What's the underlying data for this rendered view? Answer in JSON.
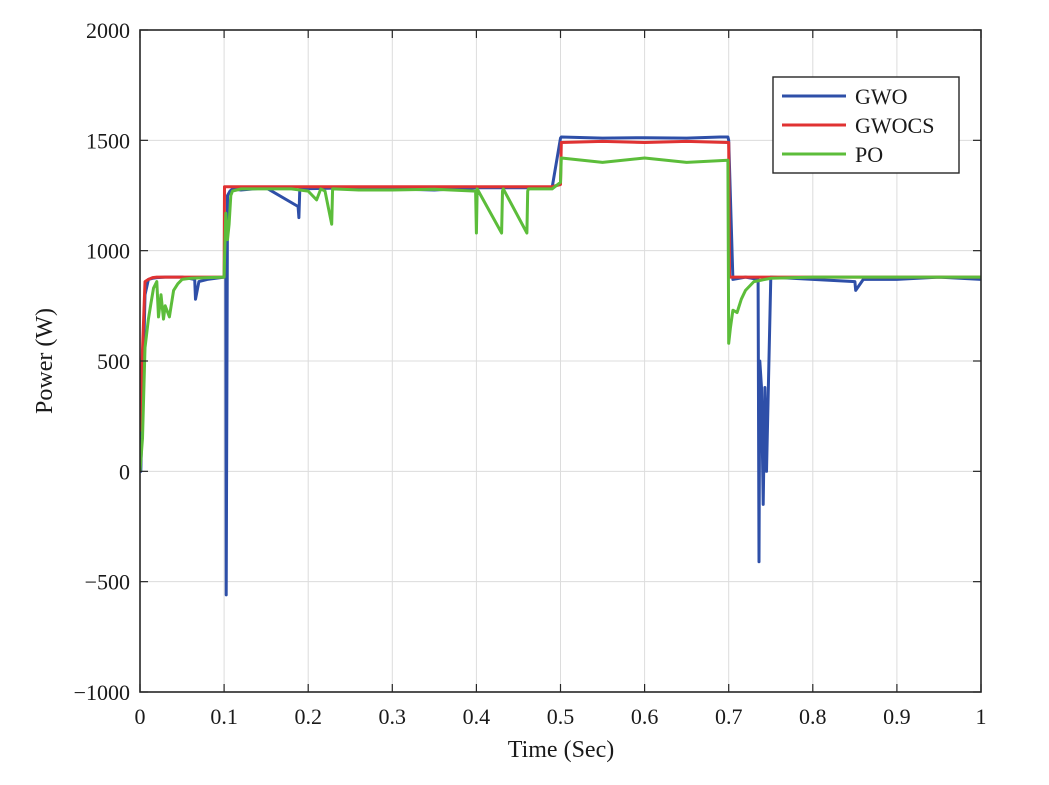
{
  "chart_data": {
    "type": "line",
    "title": "",
    "xlabel": "Time (Sec)",
    "ylabel": "Power (W)",
    "xlim": [
      0,
      1
    ],
    "ylim": [
      -1000,
      2000
    ],
    "xticks": [
      0,
      0.1,
      0.2,
      0.3,
      0.4,
      0.5,
      0.6,
      0.7,
      0.8,
      0.9,
      1
    ],
    "xtick_labels": [
      "0",
      "0.1",
      "0.2",
      "0.3",
      "0.4",
      "0.5",
      "0.6",
      "0.7",
      "0.8",
      "0.9",
      "1"
    ],
    "yticks": [
      -1000,
      -500,
      0,
      500,
      1000,
      1500,
      2000
    ],
    "ytick_labels": [
      "−1000",
      "−500",
      "0",
      "500",
      "1000",
      "1500",
      "2000"
    ],
    "grid": true,
    "legend_position": "top-right",
    "series": [
      {
        "name": "GWO",
        "color": "#2e4fa8",
        "x": [
          0,
          0.001,
          0.003,
          0.006,
          0.01,
          0.015,
          0.02,
          0.03,
          0.05,
          0.065,
          0.066,
          0.07,
          0.08,
          0.1,
          0.101,
          0.102,
          0.1025,
          0.104,
          0.107,
          0.11,
          0.12,
          0.15,
          0.188,
          0.189,
          0.19,
          0.25,
          0.3,
          0.35,
          0.4,
          0.45,
          0.49,
          0.5,
          0.501,
          0.55,
          0.6,
          0.65,
          0.69,
          0.699,
          0.7,
          0.705,
          0.72,
          0.735,
          0.736,
          0.737,
          0.739,
          0.741,
          0.743,
          0.745,
          0.75,
          0.8,
          0.85,
          0.851,
          0.86,
          0.9,
          0.95,
          1
        ],
        "y": [
          80,
          0,
          300,
          800,
          870,
          875,
          878,
          880,
          880,
          870,
          780,
          860,
          870,
          880,
          900,
          1000,
          -560,
          1250,
          1270,
          1280,
          1275,
          1285,
          1200,
          1150,
          1280,
          1285,
          1280,
          1275,
          1285,
          1285,
          1285,
          1510,
          1515,
          1510,
          1512,
          1510,
          1515,
          1515,
          1500,
          870,
          880,
          870,
          -410,
          500,
          380,
          -150,
          380,
          0,
          880,
          870,
          860,
          820,
          870,
          870,
          880,
          870
        ]
      },
      {
        "name": "GWOCS",
        "color": "#e03232",
        "x": [
          0,
          0.001,
          0.003,
          0.006,
          0.01,
          0.015,
          0.02,
          0.03,
          0.05,
          0.1,
          0.1005,
          0.11,
          0.15,
          0.2,
          0.3,
          0.4,
          0.49,
          0.5,
          0.501,
          0.55,
          0.6,
          0.65,
          0.699,
          0.7,
          0.701,
          0.75,
          0.8,
          0.9,
          1
        ],
        "y": [
          180,
          300,
          550,
          860,
          870,
          878,
          880,
          880,
          880,
          880,
          1290,
          1290,
          1290,
          1290,
          1290,
          1290,
          1290,
          1300,
          1490,
          1495,
          1490,
          1495,
          1490,
          1490,
          880,
          880,
          880,
          880,
          880
        ]
      },
      {
        "name": "PO",
        "color": "#5cbd3a",
        "x": [
          0,
          0.003,
          0.006,
          0.01,
          0.013,
          0.016,
          0.02,
          0.022,
          0.025,
          0.028,
          0.03,
          0.035,
          0.04,
          0.045,
          0.05,
          0.06,
          0.08,
          0.1,
          0.1005,
          0.102,
          0.104,
          0.106,
          0.108,
          0.11,
          0.115,
          0.12,
          0.15,
          0.18,
          0.2,
          0.21,
          0.215,
          0.22,
          0.228,
          0.229,
          0.23,
          0.26,
          0.3,
          0.35,
          0.399,
          0.4,
          0.401,
          0.43,
          0.431,
          0.432,
          0.46,
          0.461,
          0.462,
          0.49,
          0.5,
          0.501,
          0.55,
          0.6,
          0.65,
          0.699,
          0.7,
          0.702,
          0.705,
          0.71,
          0.715,
          0.72,
          0.73,
          0.75,
          0.8,
          0.9,
          1
        ],
        "y": [
          0,
          150,
          560,
          690,
          760,
          830,
          860,
          700,
          800,
          690,
          750,
          700,
          820,
          850,
          870,
          875,
          878,
          880,
          960,
          1170,
          1050,
          1120,
          1250,
          1270,
          1275,
          1280,
          1280,
          1280,
          1270,
          1230,
          1280,
          1270,
          1120,
          1280,
          1280,
          1275,
          1275,
          1278,
          1270,
          1080,
          1280,
          1080,
          1270,
          1280,
          1080,
          1270,
          1280,
          1280,
          1310,
          1420,
          1400,
          1420,
          1400,
          1410,
          580,
          650,
          730,
          720,
          780,
          820,
          860,
          875,
          880,
          880,
          880
        ]
      }
    ]
  }
}
